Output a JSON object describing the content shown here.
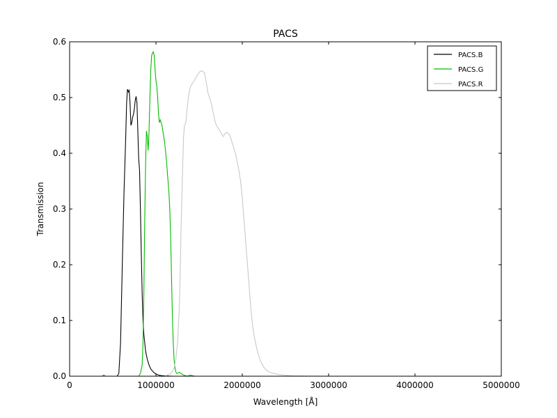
{
  "chart_data": {
    "type": "line",
    "title": "PACS",
    "xlabel": "Wavelength [Å]",
    "ylabel": "Transmission",
    "xlim": [
      0,
      5000000
    ],
    "ylim": [
      0,
      0.6
    ],
    "xticks": [
      0,
      1000000,
      2000000,
      3000000,
      4000000,
      5000000
    ],
    "xtick_labels": [
      "0",
      "1000000",
      "2000000",
      "3000000",
      "4000000",
      "5000000"
    ],
    "yticks": [
      0.0,
      0.1,
      0.2,
      0.3,
      0.4,
      0.5,
      0.6
    ],
    "ytick_labels": [
      "0.0",
      "0.1",
      "0.2",
      "0.3",
      "0.4",
      "0.5",
      "0.6"
    ],
    "grid": false,
    "legend_position": "top-right",
    "series": [
      {
        "name": "PACS.B",
        "color": "#000000",
        "x": [
          0,
          550000,
          570000,
          590000,
          610000,
          630000,
          650000,
          660000,
          670000,
          680000,
          690000,
          700000,
          710000,
          720000,
          730000,
          740000,
          750000,
          760000,
          770000,
          780000,
          790000,
          800000,
          810000,
          820000,
          830000,
          840000,
          850000,
          860000,
          870000,
          880000,
          900000,
          920000,
          940000,
          960000,
          980000,
          1000000,
          1030000,
          1060000,
          1100000,
          1200000,
          5000000
        ],
        "y": [
          0,
          0,
          0.005,
          0.06,
          0.2,
          0.33,
          0.43,
          0.49,
          0.515,
          0.51,
          0.513,
          0.49,
          0.45,
          0.455,
          0.465,
          0.47,
          0.48,
          0.495,
          0.502,
          0.49,
          0.44,
          0.39,
          0.37,
          0.3,
          0.22,
          0.15,
          0.1,
          0.075,
          0.06,
          0.045,
          0.03,
          0.02,
          0.013,
          0.009,
          0.006,
          0.004,
          0.002,
          0.001,
          0.0005,
          0,
          0
        ]
      },
      {
        "name": "PACS.G",
        "color": "#00bb00",
        "x": [
          0,
          380000,
          390000,
          400000,
          410000,
          800000,
          820000,
          840000,
          850000,
          860000,
          870000,
          880000,
          890000,
          900000,
          910000,
          920000,
          930000,
          940000,
          950000,
          960000,
          970000,
          980000,
          990000,
          1000000,
          1010000,
          1020000,
          1030000,
          1040000,
          1050000,
          1060000,
          1070000,
          1080000,
          1090000,
          1100000,
          1110000,
          1120000,
          1130000,
          1140000,
          1150000,
          1160000,
          1170000,
          1180000,
          1190000,
          1200000,
          1210000,
          1220000,
          1230000,
          1240000,
          1250000,
          1260000,
          1270000,
          1280000,
          1290000,
          1300000,
          1320000,
          1340000,
          1360000,
          1380000,
          1400000,
          1420000,
          1450000,
          5000000
        ],
        "y": [
          0,
          0,
          0.002,
          0.002,
          0,
          0,
          0.005,
          0.02,
          0.06,
          0.15,
          0.28,
          0.38,
          0.44,
          0.43,
          0.405,
          0.44,
          0.5,
          0.55,
          0.575,
          0.58,
          0.582,
          0.575,
          0.55,
          0.53,
          0.52,
          0.5,
          0.47,
          0.455,
          0.46,
          0.455,
          0.45,
          0.44,
          0.43,
          0.42,
          0.405,
          0.39,
          0.37,
          0.35,
          0.33,
          0.3,
          0.25,
          0.18,
          0.11,
          0.06,
          0.03,
          0.015,
          0.008,
          0.005,
          0.005,
          0.006,
          0.007,
          0.006,
          0.005,
          0.004,
          0.002,
          0.001,
          0,
          0.001,
          0.002,
          0.001,
          0,
          0
        ]
      },
      {
        "name": "PACS.R",
        "color": "#c8c8c8",
        "x": [
          0,
          1000000,
          1100000,
          1130000,
          1160000,
          1190000,
          1210000,
          1230000,
          1250000,
          1270000,
          1280000,
          1290000,
          1300000,
          1310000,
          1320000,
          1330000,
          1340000,
          1350000,
          1360000,
          1380000,
          1400000,
          1420000,
          1440000,
          1460000,
          1480000,
          1500000,
          1520000,
          1540000,
          1560000,
          1580000,
          1600000,
          1620000,
          1640000,
          1660000,
          1680000,
          1700000,
          1720000,
          1740000,
          1760000,
          1780000,
          1800000,
          1820000,
          1840000,
          1860000,
          1880000,
          1900000,
          1920000,
          1940000,
          1960000,
          1980000,
          2000000,
          2020000,
          2040000,
          2060000,
          2080000,
          2100000,
          2120000,
          2140000,
          2160000,
          2180000,
          2200000,
          2220000,
          2250000,
          2280000,
          2320000,
          2360000,
          2420000,
          2500000,
          2600000,
          2750000,
          3000000,
          5000000
        ],
        "y": [
          0,
          0,
          0,
          0.002,
          0.004,
          0.008,
          0.015,
          0.03,
          0.06,
          0.12,
          0.18,
          0.26,
          0.32,
          0.38,
          0.43,
          0.45,
          0.452,
          0.46,
          0.48,
          0.505,
          0.52,
          0.525,
          0.53,
          0.535,
          0.54,
          0.545,
          0.548,
          0.547,
          0.545,
          0.53,
          0.51,
          0.5,
          0.49,
          0.475,
          0.46,
          0.45,
          0.445,
          0.44,
          0.435,
          0.43,
          0.435,
          0.438,
          0.435,
          0.43,
          0.42,
          0.41,
          0.4,
          0.385,
          0.37,
          0.35,
          0.32,
          0.28,
          0.24,
          0.2,
          0.16,
          0.12,
          0.09,
          0.07,
          0.055,
          0.042,
          0.032,
          0.024,
          0.016,
          0.011,
          0.007,
          0.005,
          0.003,
          0.0015,
          0.0007,
          0.0002,
          0,
          0
        ]
      }
    ]
  }
}
